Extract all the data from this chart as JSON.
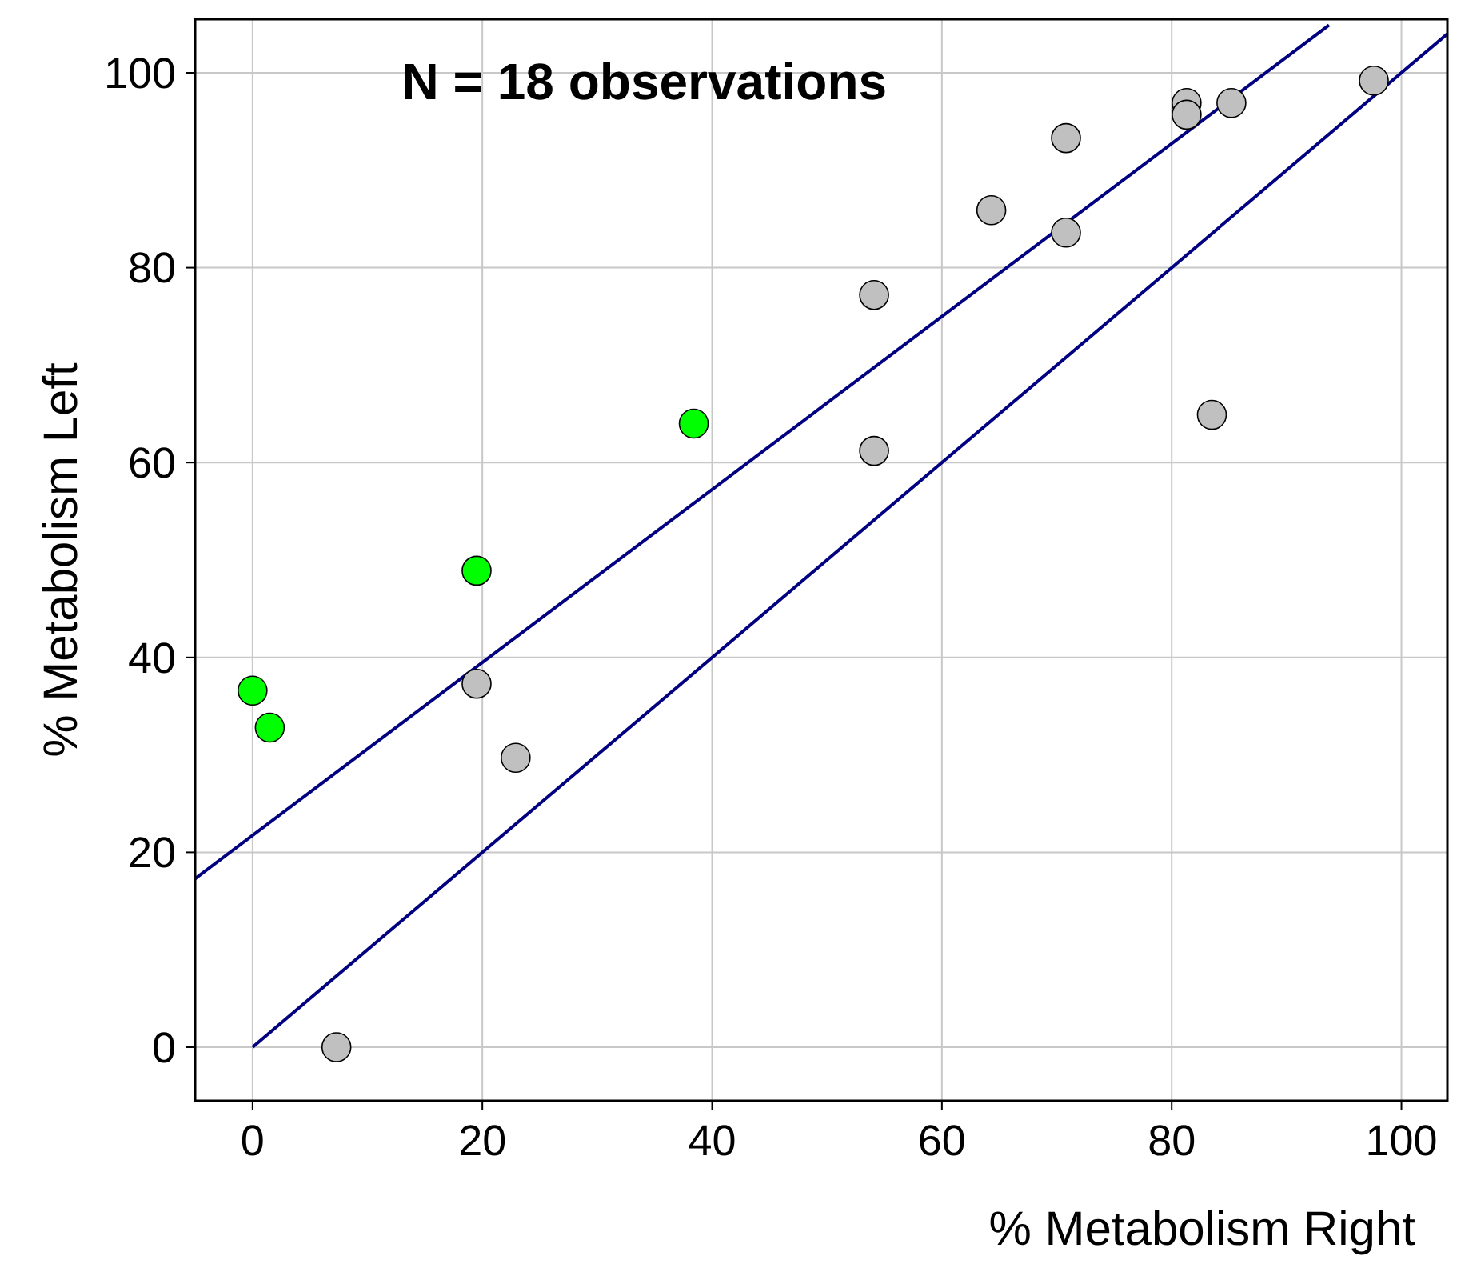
{
  "chart_data": {
    "type": "scatter",
    "title": "N = 18 observations",
    "xlabel": "% Metabolism Right",
    "ylabel": "% Metabolism Left",
    "xlim": [
      -5,
      104
    ],
    "ylim": [
      -5.5,
      105.5
    ],
    "xticks": [
      0,
      20,
      40,
      60,
      80,
      100
    ],
    "yticks": [
      0,
      20,
      40,
      60,
      80,
      100
    ],
    "grid": true,
    "series": [
      {
        "marker": "circle",
        "color": "#c0c0c0",
        "x": [
          7.3,
          19.5,
          22.9,
          54.1,
          54.1,
          64.3,
          70.8,
          70.8,
          81.3,
          81.3,
          85.2,
          83.5,
          97.6
        ],
        "values": [
          0,
          37.3,
          29.7,
          77.2,
          61.2,
          85.9,
          93.3,
          83.6,
          96.9,
          95.7,
          96.9,
          64.9,
          99.2
        ]
      },
      {
        "marker": "circle",
        "color": "#00ff00",
        "x": [
          0,
          1.5,
          19.5,
          38.4
        ],
        "values": [
          36.6,
          32.8,
          48.9,
          64.0
        ]
      },
      {
        "type": "line",
        "color": "#000080",
        "x": [
          -5,
          93.7
        ],
        "values": [
          17.3,
          104.9
        ]
      },
      {
        "type": "line",
        "color": "#000080",
        "x": [
          0,
          104
        ],
        "values": [
          0,
          104
        ]
      }
    ]
  }
}
